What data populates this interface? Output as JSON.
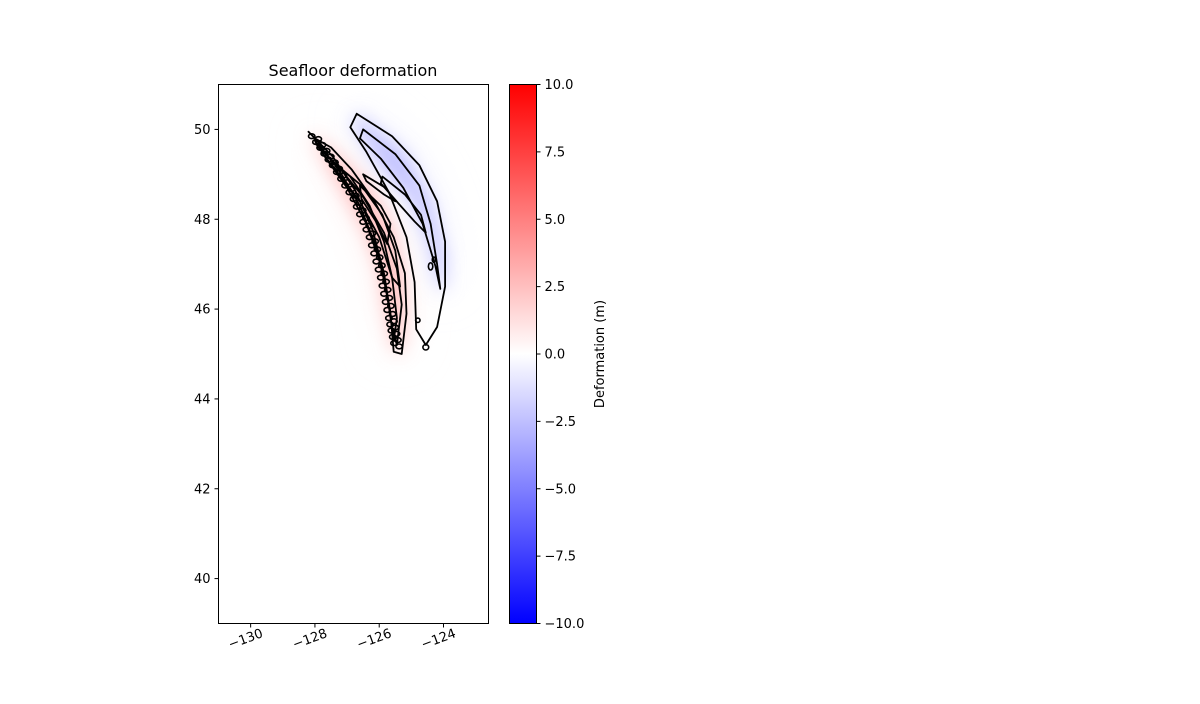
{
  "chart_data": {
    "type": "heatmap",
    "title": "Seafloor deformation",
    "xlim": [
      -131,
      -122.6
    ],
    "ylim": [
      39,
      51
    ],
    "x_ticks": [
      -130,
      -128,
      -126,
      -124
    ],
    "x_tick_labels": [
      "−130",
      "−128",
      "−126",
      "−124"
    ],
    "y_ticks": [
      40,
      42,
      44,
      46,
      48,
      50
    ],
    "y_tick_labels": [
      "40",
      "42",
      "44",
      "46",
      "48",
      "50"
    ],
    "xlabel": "",
    "ylabel": "",
    "grid": false,
    "colormap": "bwr",
    "colorbar": {
      "label": "Deformation (m)",
      "range": [
        -10,
        10
      ],
      "ticks": [
        -10,
        -7.5,
        -5,
        -2.5,
        0,
        2.5,
        5,
        7.5,
        10
      ],
      "tick_labels": [
        "−10.0",
        "−7.5",
        "−5.0",
        "−2.5",
        "0.0",
        "2.5",
        "5.0",
        "7.5",
        "10.0"
      ],
      "colors": {
        "low": "#0000ff",
        "mid": "#ffffff",
        "high": "#ff0000"
      }
    },
    "uplift_peak_m": 2.5,
    "subsidence_peak_m": -2.5,
    "uplift_zone": [
      [
        -128.1,
        49.9
      ],
      [
        -127.2,
        49.35
      ],
      [
        -126.3,
        48.7
      ],
      [
        -125.6,
        47.8
      ],
      [
        -125.3,
        46.9
      ],
      [
        -125.2,
        46.0
      ],
      [
        -125.3,
        45.1
      ],
      [
        -125.5,
        45.0
      ],
      [
        -125.8,
        46.0
      ],
      [
        -126.0,
        46.9
      ],
      [
        -126.4,
        47.7
      ],
      [
        -127.1,
        48.6
      ],
      [
        -128.05,
        49.75
      ]
    ],
    "subsidence_zone": [
      [
        -126.7,
        50.35
      ],
      [
        -125.2,
        49.45
      ],
      [
        -124.4,
        48.4
      ],
      [
        -123.95,
        47.2
      ],
      [
        -123.95,
        46.4
      ],
      [
        -124.15,
        46.5
      ],
      [
        -124.45,
        47.5
      ],
      [
        -124.95,
        48.4
      ],
      [
        -126.0,
        49.25
      ],
      [
        -126.8,
        50.15
      ]
    ],
    "contours": [
      {
        "level": "subsidence-outer",
        "points": [
          [
            -126.7,
            50.35
          ],
          [
            -125.6,
            49.85
          ],
          [
            -124.75,
            49.2
          ],
          [
            -124.2,
            48.4
          ],
          [
            -123.95,
            47.5
          ],
          [
            -123.95,
            46.5
          ],
          [
            -124.2,
            45.6
          ],
          [
            -124.55,
            45.2
          ],
          [
            -124.85,
            45.55
          ],
          [
            -124.9,
            46.6
          ],
          [
            -125.15,
            47.6
          ],
          [
            -125.7,
            48.6
          ],
          [
            -126.4,
            49.5
          ],
          [
            -126.9,
            50.05
          ]
        ]
      },
      {
        "level": "subsidence-mid",
        "points": [
          [
            -126.5,
            50.0
          ],
          [
            -125.5,
            49.45
          ],
          [
            -124.75,
            48.75
          ],
          [
            -124.4,
            47.9
          ],
          [
            -124.2,
            47.0
          ],
          [
            -124.1,
            46.45
          ],
          [
            -124.25,
            46.95
          ],
          [
            -124.65,
            47.9
          ],
          [
            -125.25,
            48.7
          ],
          [
            -125.95,
            49.35
          ],
          [
            -126.6,
            49.8
          ]
        ]
      },
      {
        "level": "subsidence-inner",
        "points": [
          [
            -125.9,
            48.95
          ],
          [
            -125.2,
            48.55
          ],
          [
            -124.7,
            48.1
          ],
          [
            -124.55,
            47.7
          ],
          [
            -124.9,
            47.95
          ],
          [
            -125.4,
            48.35
          ],
          [
            -125.95,
            48.8
          ]
        ]
      },
      {
        "level": "uplift-1",
        "points": [
          [
            -127.4,
            49.25
          ],
          [
            -126.55,
            48.75
          ],
          [
            -125.9,
            48.1
          ],
          [
            -125.5,
            47.3
          ],
          [
            -125.35,
            46.5
          ],
          [
            -125.6,
            46.7
          ],
          [
            -125.85,
            47.5
          ],
          [
            -126.3,
            48.3
          ],
          [
            -126.9,
            48.95
          ]
        ]
      },
      {
        "level": "uplift-2",
        "points": [
          [
            -126.6,
            48.75
          ],
          [
            -125.95,
            48.3
          ],
          [
            -125.65,
            47.9
          ],
          [
            -125.75,
            47.45
          ],
          [
            -126.1,
            47.95
          ],
          [
            -126.55,
            48.45
          ]
        ]
      },
      {
        "level": "uplift-3",
        "points": [
          [
            -126.5,
            49.0
          ],
          [
            -125.8,
            48.7
          ],
          [
            -125.5,
            48.4
          ],
          [
            -125.85,
            48.55
          ],
          [
            -126.4,
            48.85
          ]
        ]
      },
      {
        "level": "trench-outer",
        "points": [
          [
            -128.2,
            49.95
          ],
          [
            -127.45,
            49.4
          ],
          [
            -126.75,
            48.65
          ],
          [
            -126.2,
            47.75
          ],
          [
            -125.85,
            46.8
          ],
          [
            -125.65,
            45.9
          ],
          [
            -125.55,
            45.05
          ],
          [
            -125.3,
            45.0
          ],
          [
            -125.15,
            45.9
          ],
          [
            -125.2,
            46.8
          ],
          [
            -125.55,
            47.6
          ],
          [
            -126.15,
            48.4
          ],
          [
            -126.85,
            49.1
          ],
          [
            -127.5,
            49.6
          ],
          [
            -128.0,
            49.8
          ]
        ]
      },
      {
        "level": "trench-inner",
        "points": [
          [
            -128.0,
            49.75
          ],
          [
            -127.25,
            49.1
          ],
          [
            -126.6,
            48.3
          ],
          [
            -126.1,
            47.4
          ],
          [
            -125.8,
            46.5
          ],
          [
            -125.6,
            45.6
          ],
          [
            -125.45,
            45.2
          ],
          [
            -125.3,
            46.1
          ],
          [
            -125.45,
            46.9
          ],
          [
            -125.85,
            47.7
          ],
          [
            -126.5,
            48.5
          ],
          [
            -127.3,
            49.2
          ],
          [
            -127.9,
            49.6
          ]
        ]
      },
      {
        "level": "trench-core",
        "points": [
          [
            -127.8,
            49.5
          ],
          [
            -127.0,
            48.7
          ],
          [
            -126.4,
            47.9
          ],
          [
            -125.95,
            47.0
          ],
          [
            -125.7,
            46.1
          ],
          [
            -125.55,
            45.3
          ],
          [
            -125.45,
            45.8
          ],
          [
            -125.6,
            46.7
          ],
          [
            -126.0,
            47.6
          ],
          [
            -126.6,
            48.4
          ],
          [
            -127.3,
            49.05
          ]
        ]
      }
    ],
    "ripple_line": [
      [
        -128.05,
        49.85
      ],
      [
        -127.4,
        49.2
      ],
      [
        -126.75,
        48.45
      ],
      [
        -126.25,
        47.6
      ],
      [
        -125.9,
        46.7
      ],
      [
        -125.65,
        45.8
      ],
      [
        -125.45,
        45.1
      ]
    ],
    "small_closed_contours": [
      {
        "center": [
          -124.8,
          45.75
        ],
        "r": [
          0.07,
          0.05
        ]
      },
      {
        "center": [
          -124.55,
          45.15
        ],
        "r": [
          0.09,
          0.06
        ]
      },
      {
        "center": [
          -124.4,
          46.95
        ],
        "r": [
          0.07,
          0.08
        ]
      },
      {
        "center": [
          -124.3,
          47.1
        ],
        "r": [
          0.05,
          0.06
        ]
      }
    ]
  }
}
